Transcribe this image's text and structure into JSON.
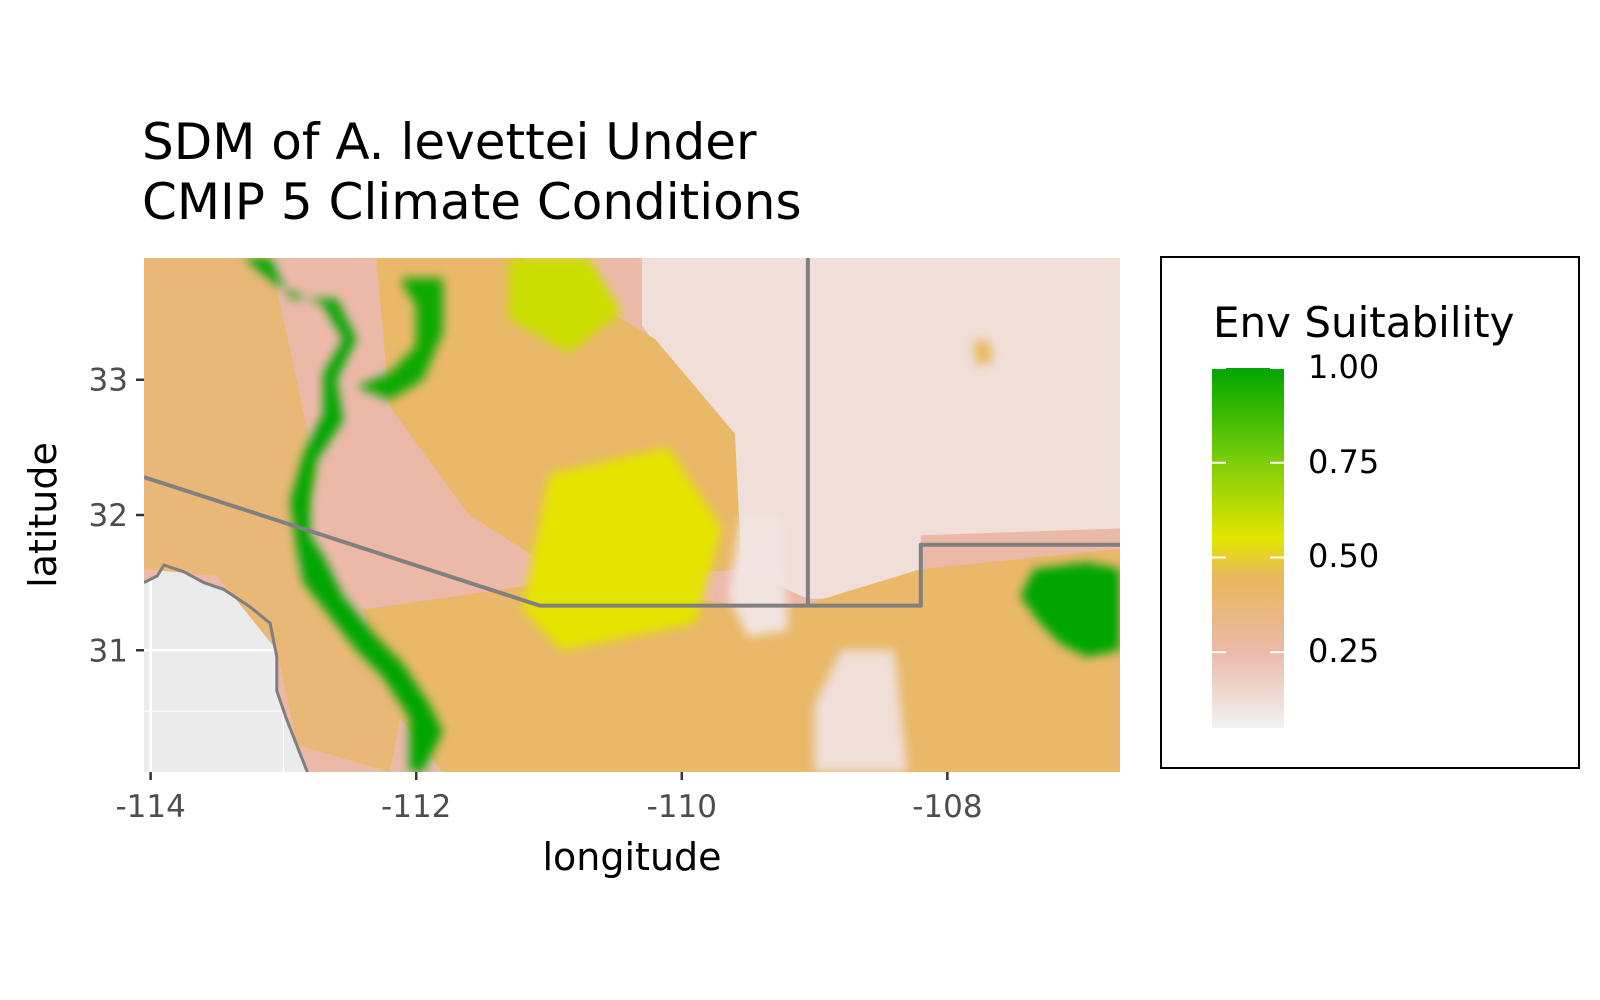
{
  "title_lines": [
    "SDM of A. levettei Under",
    "CMIP 5 Climate Conditions"
  ],
  "chart_data": {
    "type": "heatmap",
    "xlabel": "longitude",
    "ylabel": "latitude",
    "xlim": [
      -114.05,
      -106.7
    ],
    "ylim": [
      30.1,
      33.9
    ],
    "x_ticks": [
      -114,
      -112,
      -110,
      -108
    ],
    "x_tick_labels": [
      "-114",
      "-112",
      "-110",
      "-108"
    ],
    "y_ticks": [
      31,
      32,
      33
    ],
    "y_tick_labels": [
      "31",
      "32",
      "33"
    ],
    "legend": {
      "title": "Env Suitability",
      "position": "right",
      "breaks": [
        1.0,
        0.75,
        0.5,
        0.25
      ],
      "labels": [
        "1.00",
        "0.75",
        "0.50",
        "0.25"
      ],
      "range": [
        0.05,
        1.0
      ],
      "gradient": [
        {
          "value": 0.05,
          "color": "#f2f2f2"
        },
        {
          "value": 0.25,
          "color": "#ecb9a9"
        },
        {
          "value": 0.45,
          "color": "#e8b85c"
        },
        {
          "value": 0.55,
          "color": "#e4e400"
        },
        {
          "value": 0.75,
          "color": "#7dcf0a"
        },
        {
          "value": 1.0,
          "color": "#00a600"
        }
      ]
    },
    "borders": [
      {
        "name": "border-us-mexico",
        "points": [
          [
            -114.05,
            32.28
          ],
          [
            -111.07,
            31.33
          ],
          [
            -109.05,
            31.33
          ],
          [
            -108.2,
            31.33
          ],
          [
            -108.2,
            31.78
          ],
          [
            -106.7,
            31.78
          ]
        ]
      },
      {
        "name": "border-arizona-newmexico",
        "points": [
          [
            -109.05,
            33.9
          ],
          [
            -109.05,
            31.33
          ]
        ]
      }
    ],
    "coastline": [
      [
        -114.05,
        31.5
      ],
      [
        -113.95,
        31.55
      ],
      [
        -113.9,
        31.63
      ],
      [
        -113.75,
        31.58
      ],
      [
        -113.6,
        31.5
      ],
      [
        -113.45,
        31.45
      ],
      [
        -113.25,
        31.32
      ],
      [
        -113.1,
        31.2
      ],
      [
        -113.05,
        30.95
      ],
      [
        -113.05,
        30.7
      ],
      [
        -112.98,
        30.5
      ],
      [
        -112.9,
        30.3
      ],
      [
        -112.82,
        30.1
      ]
    ],
    "suitability_regions": [
      {
        "name": "sonoran-coastal-green-band",
        "value": 1.0,
        "points": [
          [
            -113.1,
            33.9
          ],
          [
            -112.95,
            33.6
          ],
          [
            -112.6,
            33.6
          ],
          [
            -112.45,
            33.3
          ],
          [
            -112.6,
            33.0
          ],
          [
            -112.55,
            32.7
          ],
          [
            -112.75,
            32.4
          ],
          [
            -112.8,
            32.1
          ],
          [
            -112.8,
            31.85
          ],
          [
            -112.7,
            31.7
          ],
          [
            -112.55,
            31.4
          ],
          [
            -112.3,
            31.1
          ],
          [
            -112.1,
            30.9
          ],
          [
            -111.9,
            30.6
          ],
          [
            -111.8,
            30.4
          ],
          [
            -111.95,
            30.1
          ],
          [
            -112.05,
            30.1
          ],
          [
            -112.05,
            30.5
          ],
          [
            -112.25,
            30.8
          ],
          [
            -112.45,
            31.0
          ],
          [
            -112.65,
            31.25
          ],
          [
            -112.85,
            31.5
          ],
          [
            -112.9,
            31.75
          ],
          [
            -112.95,
            32.1
          ],
          [
            -112.85,
            32.45
          ],
          [
            -112.7,
            32.75
          ],
          [
            -112.7,
            33.05
          ],
          [
            -112.55,
            33.3
          ],
          [
            -112.7,
            33.55
          ],
          [
            -113.05,
            33.7
          ],
          [
            -113.3,
            33.9
          ]
        ]
      },
      {
        "name": "central-arizona-green-ring",
        "value": 0.98,
        "points": [
          [
            -112.1,
            33.75
          ],
          [
            -111.8,
            33.75
          ],
          [
            -111.8,
            33.35
          ],
          [
            -111.95,
            33.0
          ],
          [
            -112.2,
            32.85
          ],
          [
            -112.45,
            32.95
          ],
          [
            -112.2,
            33.05
          ],
          [
            -112.0,
            33.25
          ],
          [
            -112.0,
            33.55
          ],
          [
            -112.1,
            33.7
          ]
        ]
      },
      {
        "name": "new-mexico-green-patch",
        "value": 1.0,
        "points": [
          [
            -107.35,
            31.6
          ],
          [
            -106.95,
            31.65
          ],
          [
            -106.7,
            31.6
          ],
          [
            -106.7,
            31.0
          ],
          [
            -106.95,
            30.95
          ],
          [
            -107.15,
            31.05
          ],
          [
            -107.3,
            31.2
          ],
          [
            -107.45,
            31.4
          ]
        ]
      },
      {
        "name": "mogollon-yellow-patch",
        "value": 0.6,
        "points": [
          [
            -111.3,
            33.9
          ],
          [
            -110.7,
            33.9
          ],
          [
            -110.45,
            33.5
          ],
          [
            -110.85,
            33.2
          ],
          [
            -111.3,
            33.45
          ]
        ]
      },
      {
        "name": "southeast-arizona-yellow-patch",
        "value": 0.55,
        "points": [
          [
            -111.0,
            32.3
          ],
          [
            -110.1,
            32.5
          ],
          [
            -109.7,
            31.9
          ],
          [
            -109.9,
            31.2
          ],
          [
            -110.9,
            31.0
          ],
          [
            -111.2,
            31.3
          ]
        ]
      },
      {
        "name": "cochise-pale-patch",
        "value": 0.1,
        "points": [
          [
            -109.55,
            32.0
          ],
          [
            -109.25,
            32.0
          ],
          [
            -109.2,
            31.15
          ],
          [
            -109.5,
            31.1
          ],
          [
            -109.65,
            31.4
          ]
        ]
      },
      {
        "name": "chihuahua-pale-patch",
        "value": 0.12,
        "points": [
          [
            -108.8,
            31.0
          ],
          [
            -108.4,
            31.0
          ],
          [
            -108.3,
            30.1
          ],
          [
            -109.0,
            30.1
          ],
          [
            -109.0,
            30.6
          ]
        ]
      },
      {
        "name": "new-mexico-high-spot",
        "value": 0.45,
        "points": [
          [
            -107.8,
            33.28
          ],
          [
            -107.7,
            33.3
          ],
          [
            -107.65,
            33.15
          ],
          [
            -107.78,
            33.1
          ]
        ]
      }
    ]
  }
}
